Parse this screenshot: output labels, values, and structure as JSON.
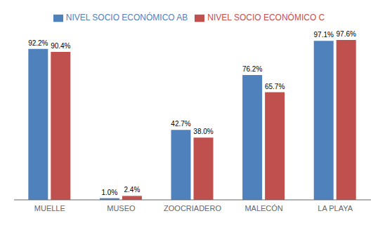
{
  "chart_data": {
    "type": "bar",
    "categories": [
      "MUELLE",
      "MUSEO",
      "ZOOCRIADERO",
      "MALECÓN",
      "LA PLAYA"
    ],
    "series": [
      {
        "name": "NIVEL SOCIO ECONÓMICO AB",
        "color": "#4F81BD",
        "values": [
          92.2,
          1.0,
          42.7,
          76.2,
          97.1
        ],
        "value_labels": [
          "92.2%",
          "1.0%",
          "42.7%",
          "76.2%",
          "97.1%"
        ]
      },
      {
        "name": "NIVEL SOCIO ECONÓMICO C",
        "color": "#C0504D",
        "values": [
          90.4,
          2.4,
          38.0,
          65.7,
          97.6
        ],
        "value_labels": [
          "90.4%",
          "2.4%",
          "38.0%",
          "65.7%",
          "97.6%"
        ]
      }
    ],
    "ylim": [
      0,
      108
    ],
    "yticks": [],
    "tick_labels": "x",
    "data_labels": true,
    "legend": "top",
    "grid": false
  }
}
